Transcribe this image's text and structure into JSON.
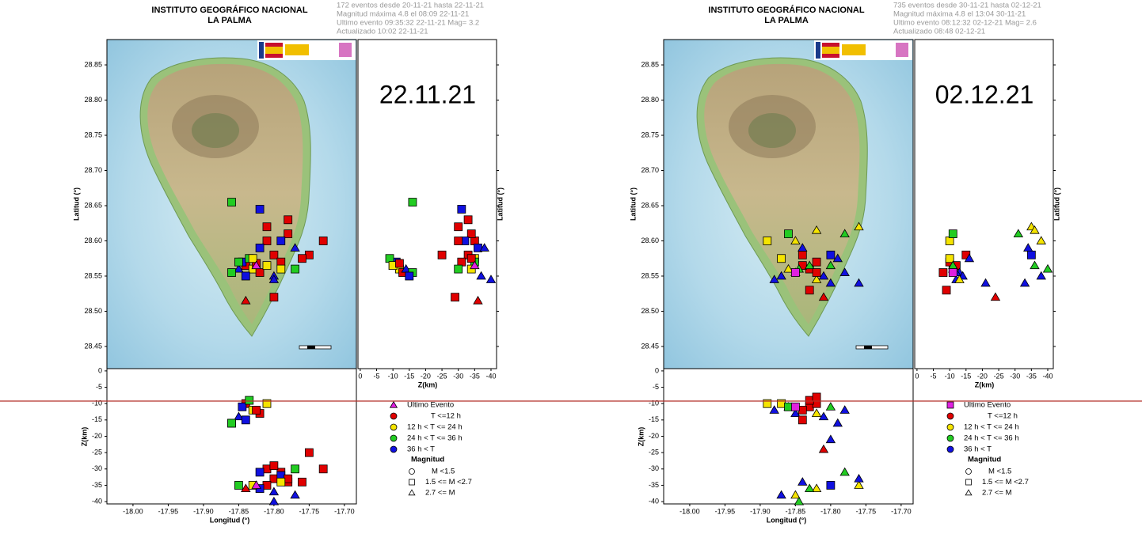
{
  "panels": [
    {
      "title": "INSTITUTO GEOGRÁFICO NACIONAL",
      "subtitle": "LA PALMA",
      "info": [
        "172 eventos desde 20-11-21 hasta 22-11-21",
        "Magnitud máxima 4.8 el 08:09 22-11-21",
        "Ultimo evento  09:35:32 22-11-21  Mag= 3.2",
        "Actualizado  10:02  22-11-21"
      ],
      "date_label": "22.11.21",
      "lat_axis": {
        "label": "Latitud (°)",
        "lim": [
          28.4185,
          28.886
        ],
        "ticks": [
          28.45,
          {
            "value": 28.5,
            "label": "28.50"
          },
          28.55,
          {
            "value": 28.6,
            "label": "28.60"
          },
          28.65,
          {
            "value": 28.7,
            "label": "28.70"
          },
          28.75,
          {
            "value": 28.8,
            "label": "28.80"
          },
          28.85
        ]
      },
      "lon_axis": {
        "label": "Longitud (°)",
        "lim": [
          -18.037,
          -17.683
        ],
        "ticks": [
          {
            "value": -18,
            "label": "-18.00"
          },
          -17.95,
          {
            "value": -17.9,
            "label": "-17.90"
          },
          -17.85,
          {
            "value": -17.8,
            "label": "-17.80"
          },
          -17.75,
          {
            "value": -17.7,
            "label": "-17.70"
          }
        ]
      },
      "side_depth_axis": {
        "label": "Z(km)",
        "lim": [
          0.7,
          -41.7
        ],
        "ticks": [
          0,
          -5,
          -10,
          -15,
          -20,
          -25,
          -30,
          -35,
          -40
        ]
      },
      "bottom_depth_axis": {
        "label": "Z(km)",
        "lim": [
          0.7,
          -40.7
        ],
        "ticks": [
          0,
          -5,
          -10,
          -15,
          -20,
          -25,
          -30,
          -35,
          -40
        ]
      },
      "legend": {
        "entries": [
          {
            "label": "Ultimo Evento",
            "color": "#e020e0",
            "shape": "triangle"
          },
          {
            "label": "T <=12 h",
            "color": "#e00000",
            "shape": "circle"
          },
          {
            "label": "12 h  < T <= 24 h",
            "color": "#f5e400",
            "shape": "circle"
          },
          {
            "label": "24 h  < T <= 36 h",
            "color": "#22cc22",
            "shape": "circle"
          },
          {
            "label": "36 h <  T",
            "color": "#1010e0",
            "shape": "circle"
          }
        ],
        "magnitude_title": "Magnitud",
        "magnitudes": [
          {
            "label": "M <1.5",
            "shape": "circle"
          },
          {
            "label": "1.5 <= M <2.7",
            "shape": "square"
          },
          {
            "label": "2.7 <= M",
            "shape": "triangle"
          }
        ]
      },
      "events": {
        "lon": [
          -17.84,
          -17.83,
          -17.845,
          -17.82,
          -17.835,
          -17.85,
          -17.81,
          -17.86,
          -17.825,
          -17.84,
          -17.8,
          -17.81,
          -17.79,
          -17.82,
          -17.78,
          -17.8,
          -17.77,
          -17.83,
          -17.79,
          -17.81,
          -17.75,
          -17.73,
          -17.8,
          -17.84,
          -17.82,
          -17.86,
          -17.78,
          -17.85,
          -17.77,
          -17.8,
          -17.79,
          -17.76,
          -17.825
        ],
        "lat": [
          28.565,
          28.56,
          28.57,
          28.555,
          28.575,
          28.56,
          28.565,
          28.555,
          28.568,
          28.55,
          28.58,
          28.6,
          28.57,
          28.59,
          28.61,
          28.55,
          28.56,
          28.575,
          28.6,
          28.62,
          28.58,
          28.6,
          28.52,
          28.515,
          28.645,
          28.655,
          28.63,
          28.57,
          28.59,
          28.545,
          28.56,
          28.575,
          28.565
        ],
        "z": [
          -10,
          -12,
          -11,
          -13,
          -9,
          -14,
          -10,
          -16,
          -12,
          -15,
          -33,
          -35,
          -31,
          -36,
          -34,
          -37,
          -30,
          -35,
          -32,
          -30,
          -25,
          -30,
          -29,
          -36,
          -31,
          -16,
          -33,
          -35,
          -38,
          -40,
          -34,
          -34,
          -35
        ],
        "age": [
          1,
          2,
          4,
          1,
          3,
          4,
          2,
          3,
          1,
          4,
          1,
          1,
          1,
          4,
          1,
          4,
          3,
          2,
          4,
          1,
          1,
          1,
          1,
          1,
          4,
          3,
          1,
          3,
          4,
          4,
          2,
          1,
          0
        ],
        "mag": [
          1,
          1,
          1,
          1,
          1,
          2,
          1,
          1,
          1,
          1,
          1,
          1,
          1,
          1,
          1,
          2,
          1,
          1,
          1,
          1,
          1,
          1,
          1,
          2,
          1,
          1,
          1,
          1,
          2,
          2,
          1,
          1,
          2
        ]
      }
    },
    {
      "title": "INSTITUTO GEOGRÁFICO NACIONAL",
      "subtitle": "LA PALMA",
      "info": [
        "735 eventos desde 30-11-21 hasta 02-12-21",
        "Magnitud máxima 4.8 el 13:04 30-11-21",
        "Ultimo evento  08:12:32 02-12-21  Mag= 2.6",
        "Actualizado  08:48  02-12-21"
      ],
      "date_label": "02.12.21",
      "lat_axis": {
        "label": "Latitud (°)",
        "lim": [
          28.4185,
          28.886
        ],
        "ticks": [
          28.45,
          {
            "value": 28.5,
            "label": "28.50"
          },
          28.55,
          {
            "value": 28.6,
            "label": "28.60"
          },
          28.65,
          {
            "value": 28.7,
            "label": "28.70"
          },
          28.75,
          {
            "value": 28.8,
            "label": "28.80"
          },
          28.85
        ]
      },
      "lon_axis": {
        "label": "Longitud (°)",
        "lim": [
          -18.037,
          -17.683
        ],
        "ticks": [
          {
            "value": -18,
            "label": "-18.00"
          },
          -17.95,
          {
            "value": -17.9,
            "label": "-17.90"
          },
          -17.85,
          {
            "value": -17.8,
            "label": "-17.80"
          },
          -17.75,
          {
            "value": -17.7,
            "label": "-17.70"
          }
        ]
      },
      "side_depth_axis": {
        "label": "Z(km)",
        "lim": [
          0.7,
          -41.7
        ],
        "ticks": [
          0,
          -5,
          -10,
          -15,
          -20,
          -25,
          -30,
          -35,
          -40
        ]
      },
      "bottom_depth_axis": {
        "label": "Z(km)",
        "lim": [
          0.7,
          -40.7
        ],
        "ticks": [
          0,
          -5,
          -10,
          -15,
          -20,
          -25,
          -30,
          -35,
          -40
        ]
      },
      "legend": {
        "entries": [
          {
            "label": "Ultimo Evento",
            "color": "#e020e0",
            "shape": "square"
          },
          {
            "label": "T <=12 h",
            "color": "#e00000",
            "shape": "circle"
          },
          {
            "label": "12 h  < T <= 24 h",
            "color": "#f5e400",
            "shape": "circle"
          },
          {
            "label": "24 h  < T <= 36 h",
            "color": "#22cc22",
            "shape": "circle"
          },
          {
            "label": "36 h <  T",
            "color": "#1010e0",
            "shape": "circle"
          }
        ],
        "magnitude_title": "Magnitud",
        "magnitudes": [
          {
            "label": "M <1.5",
            "shape": "circle"
          },
          {
            "label": "1.5 <= M <2.7",
            "shape": "square"
          },
          {
            "label": "2.7 <= M",
            "shape": "triangle"
          }
        ]
      },
      "events": {
        "lon": [
          -17.83,
          -17.84,
          -17.82,
          -17.85,
          -17.86,
          -17.87,
          -17.81,
          -17.88,
          -17.8,
          -17.89,
          -17.83,
          -17.84,
          -17.82,
          -17.86,
          -17.78,
          -17.79,
          -17.81,
          -17.8,
          -17.76,
          -17.82,
          -17.85,
          -17.84,
          -17.78,
          -17.76,
          -17.8,
          -17.87,
          -17.83,
          -17.845,
          -17.82,
          -17.85
        ],
        "lat": [
          28.56,
          28.565,
          28.57,
          28.555,
          28.56,
          28.575,
          28.55,
          28.545,
          28.565,
          28.6,
          28.53,
          28.58,
          28.545,
          28.61,
          28.555,
          28.575,
          28.52,
          28.54,
          28.62,
          28.615,
          28.6,
          28.59,
          28.61,
          28.54,
          28.58,
          28.55,
          28.565,
          28.56,
          28.555,
          28.555
        ],
        "z": [
          -11,
          -12,
          -10,
          -13,
          -11,
          -10,
          -14,
          -12,
          -11,
          -10,
          -9,
          -15,
          -13,
          -11,
          -12,
          -16,
          -24,
          -21,
          -35,
          -36,
          -38,
          -34,
          -31,
          -33,
          -35,
          -38,
          -36,
          -40,
          -8,
          -11
        ],
        "age": [
          1,
          1,
          1,
          4,
          2,
          2,
          4,
          4,
          3,
          2,
          1,
          1,
          2,
          3,
          4,
          4,
          1,
          4,
          2,
          2,
          2,
          4,
          3,
          4,
          4,
          4,
          3,
          3,
          1,
          0
        ],
        "mag": [
          1,
          1,
          1,
          2,
          2,
          1,
          2,
          2,
          2,
          1,
          1,
          1,
          2,
          1,
          2,
          2,
          2,
          2,
          2,
          2,
          2,
          2,
          2,
          2,
          1,
          2,
          2,
          2,
          1,
          1
        ]
      }
    }
  ]
}
